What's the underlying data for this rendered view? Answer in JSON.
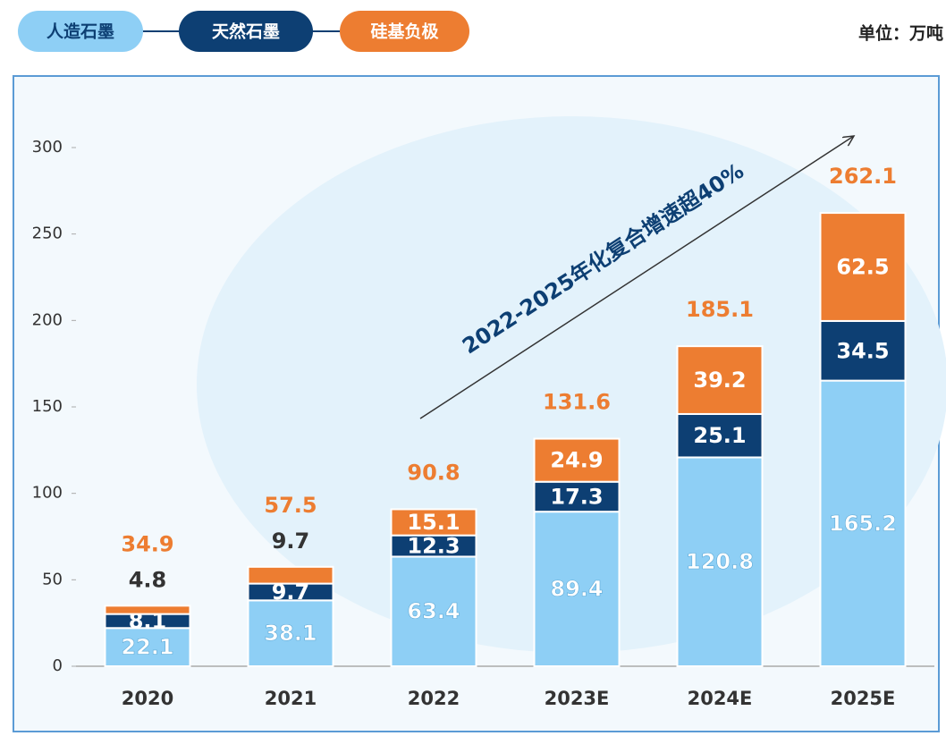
{
  "chart_data": {
    "type": "stacked_bar",
    "unit": "单位：万吨",
    "annotation": "2022-2025年化复合增速超40%",
    "categories": [
      "2020",
      "2021",
      "2022",
      "2023E",
      "2024E",
      "2025E"
    ],
    "series": [
      {
        "name": "人造石墨",
        "color": "#8ecff5",
        "values": [
          22.1,
          38.1,
          63.4,
          89.4,
          120.8,
          165.2
        ]
      },
      {
        "name": "天然石墨",
        "color": "#0d3f73",
        "values": [
          8.1,
          9.7,
          12.3,
          17.3,
          25.1,
          34.5
        ]
      },
      {
        "name": "硅基负极",
        "color": "#ed7d31",
        "values": [
          4.8,
          9.7,
          15.1,
          24.9,
          39.2,
          62.5
        ]
      }
    ],
    "totals": [
      34.9,
      57.5,
      90.8,
      131.6,
      185.1,
      262.1
    ],
    "ylim": [
      0,
      300
    ],
    "yticks": [
      0,
      50,
      100,
      150,
      200,
      250,
      300
    ],
    "grid": false
  }
}
